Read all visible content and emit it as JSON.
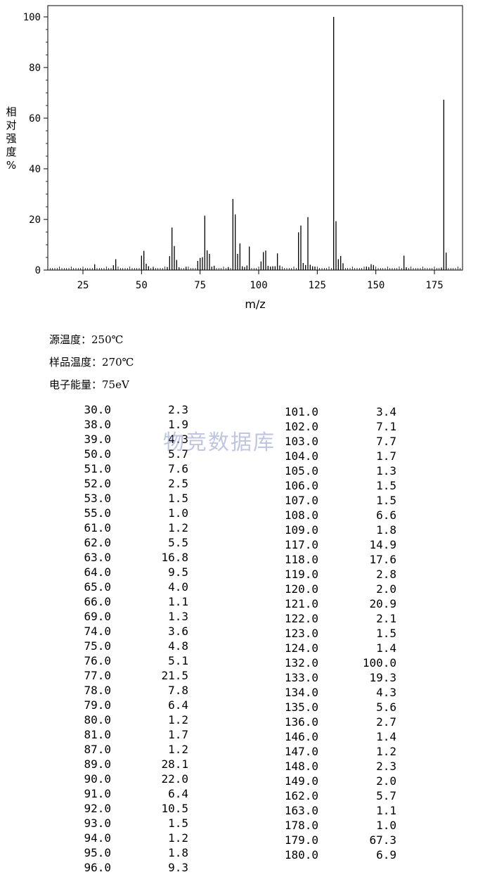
{
  "chart_data": {
    "type": "bar",
    "xlabel": "m/z",
    "ylabel": "相对强度 %",
    "xlim": [
      10,
      187
    ],
    "ylim": [
      0,
      100
    ],
    "x_ticks": [
      25,
      50,
      75,
      100,
      125,
      150,
      175
    ],
    "y_ticks": [
      0,
      20,
      40,
      60,
      80,
      100
    ],
    "peaks": [
      [
        30.0,
        2.3
      ],
      [
        38.0,
        1.9
      ],
      [
        39.0,
        4.3
      ],
      [
        50.0,
        5.7
      ],
      [
        51.0,
        7.6
      ],
      [
        52.0,
        2.5
      ],
      [
        53.0,
        1.5
      ],
      [
        55.0,
        1.0
      ],
      [
        61.0,
        1.2
      ],
      [
        62.0,
        5.5
      ],
      [
        63.0,
        16.8
      ],
      [
        64.0,
        9.5
      ],
      [
        65.0,
        4.0
      ],
      [
        66.0,
        1.1
      ],
      [
        69.0,
        1.3
      ],
      [
        74.0,
        3.6
      ],
      [
        75.0,
        4.8
      ],
      [
        76.0,
        5.1
      ],
      [
        77.0,
        21.5
      ],
      [
        78.0,
        7.8
      ],
      [
        79.0,
        6.4
      ],
      [
        80.0,
        1.2
      ],
      [
        81.0,
        1.7
      ],
      [
        87.0,
        1.2
      ],
      [
        89.0,
        28.1
      ],
      [
        90.0,
        22.0
      ],
      [
        91.0,
        6.4
      ],
      [
        92.0,
        10.5
      ],
      [
        93.0,
        1.5
      ],
      [
        94.0,
        1.2
      ],
      [
        95.0,
        1.8
      ],
      [
        96.0,
        9.3
      ],
      [
        101.0,
        3.4
      ],
      [
        102.0,
        7.1
      ],
      [
        103.0,
        7.7
      ],
      [
        104.0,
        1.7
      ],
      [
        105.0,
        1.3
      ],
      [
        106.0,
        1.5
      ],
      [
        107.0,
        1.5
      ],
      [
        108.0,
        6.6
      ],
      [
        109.0,
        1.8
      ],
      [
        117.0,
        14.9
      ],
      [
        118.0,
        17.6
      ],
      [
        119.0,
        2.8
      ],
      [
        120.0,
        2.0
      ],
      [
        121.0,
        20.9
      ],
      [
        122.0,
        2.1
      ],
      [
        123.0,
        1.5
      ],
      [
        124.0,
        1.4
      ],
      [
        132.0,
        100.0
      ],
      [
        133.0,
        19.3
      ],
      [
        134.0,
        4.3
      ],
      [
        135.0,
        5.6
      ],
      [
        136.0,
        2.7
      ],
      [
        146.0,
        1.4
      ],
      [
        147.0,
        1.2
      ],
      [
        148.0,
        2.3
      ],
      [
        149.0,
        2.0
      ],
      [
        162.0,
        5.7
      ],
      [
        163.0,
        1.1
      ],
      [
        178.0,
        1.0
      ],
      [
        179.0,
        67.3
      ],
      [
        180.0,
        6.9
      ]
    ]
  },
  "conditions": {
    "source_temp": "源温度：250℃",
    "sample_temp": "样品温度：270℃",
    "electron_energy": "电子能量：75eV"
  },
  "table": {
    "left": [
      [
        "30.0",
        "2.3"
      ],
      [
        "38.0",
        "1.9"
      ],
      [
        "39.0",
        "4.3"
      ],
      [
        "50.0",
        "5.7"
      ],
      [
        "51.0",
        "7.6"
      ],
      [
        "52.0",
        "2.5"
      ],
      [
        "53.0",
        "1.5"
      ],
      [
        "55.0",
        "1.0"
      ],
      [
        "61.0",
        "1.2"
      ],
      [
        "62.0",
        "5.5"
      ],
      [
        "63.0",
        "16.8"
      ],
      [
        "64.0",
        "9.5"
      ],
      [
        "65.0",
        "4.0"
      ],
      [
        "66.0",
        "1.1"
      ],
      [
        "69.0",
        "1.3"
      ],
      [
        "74.0",
        "3.6"
      ],
      [
        "75.0",
        "4.8"
      ],
      [
        "76.0",
        "5.1"
      ],
      [
        "77.0",
        "21.5"
      ],
      [
        "78.0",
        "7.8"
      ],
      [
        "79.0",
        "6.4"
      ],
      [
        "80.0",
        "1.2"
      ],
      [
        "81.0",
        "1.7"
      ],
      [
        "87.0",
        "1.2"
      ],
      [
        "89.0",
        "28.1"
      ],
      [
        "90.0",
        "22.0"
      ],
      [
        "91.0",
        "6.4"
      ],
      [
        "92.0",
        "10.5"
      ],
      [
        "93.0",
        "1.5"
      ],
      [
        "94.0",
        "1.2"
      ],
      [
        "95.0",
        "1.8"
      ],
      [
        "96.0",
        "9.3"
      ]
    ],
    "right": [
      [
        "101.0",
        "3.4"
      ],
      [
        "102.0",
        "7.1"
      ],
      [
        "103.0",
        "7.7"
      ],
      [
        "104.0",
        "1.7"
      ],
      [
        "105.0",
        "1.3"
      ],
      [
        "106.0",
        "1.5"
      ],
      [
        "107.0",
        "1.5"
      ],
      [
        "108.0",
        "6.6"
      ],
      [
        "109.0",
        "1.8"
      ],
      [
        "117.0",
        "14.9"
      ],
      [
        "118.0",
        "17.6"
      ],
      [
        "119.0",
        "2.8"
      ],
      [
        "120.0",
        "2.0"
      ],
      [
        "121.0",
        "20.9"
      ],
      [
        "122.0",
        "2.1"
      ],
      [
        "123.0",
        "1.5"
      ],
      [
        "124.0",
        "1.4"
      ],
      [
        "132.0",
        "100.0"
      ],
      [
        "133.0",
        "19.3"
      ],
      [
        "134.0",
        "4.3"
      ],
      [
        "135.0",
        "5.6"
      ],
      [
        "136.0",
        "2.7"
      ],
      [
        "146.0",
        "1.4"
      ],
      [
        "147.0",
        "1.2"
      ],
      [
        "148.0",
        "2.3"
      ],
      [
        "149.0",
        "2.0"
      ],
      [
        "162.0",
        "5.7"
      ],
      [
        "163.0",
        "1.1"
      ],
      [
        "178.0",
        "1.0"
      ],
      [
        "179.0",
        "67.3"
      ],
      [
        "180.0",
        "6.9"
      ]
    ]
  },
  "watermark": "物竞数据库"
}
